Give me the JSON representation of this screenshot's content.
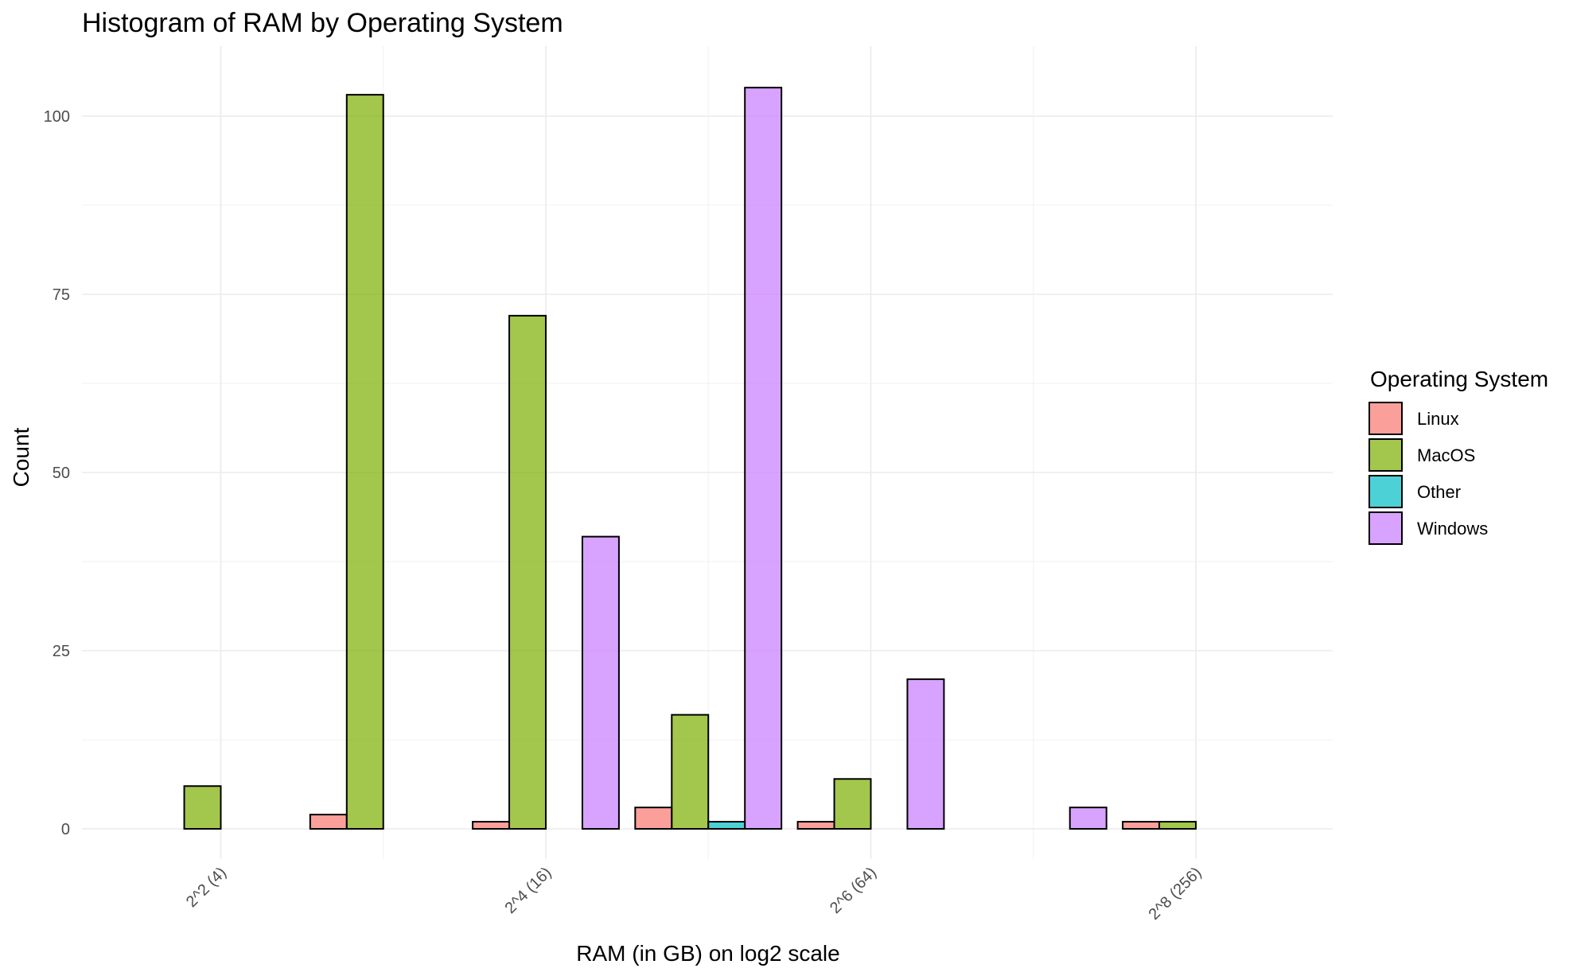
{
  "chart_data": {
    "type": "bar",
    "title": "Histogram of RAM by Operating System",
    "xlabel": "RAM (in GB) on log2 scale",
    "ylabel": "Count",
    "x_scale": "log2",
    "x_tick_labels": [
      "2^2 (4)",
      "2^4 (16)",
      "2^6 (64)",
      "2^8 (256)"
    ],
    "x_tick_values_gb": [
      4,
      16,
      64,
      256
    ],
    "ylim": [
      0,
      108
    ],
    "y_ticks": [
      0,
      25,
      50,
      75,
      100
    ],
    "grid": true,
    "legend": {
      "title": "Operating System",
      "position": "right",
      "entries": [
        "Linux",
        "MacOS",
        "Other",
        "Windows"
      ]
    },
    "bin_centers_gb": [
      4,
      8,
      16,
      32,
      64,
      128,
      256
    ],
    "series": [
      {
        "name": "Linux",
        "color": "#F8766D",
        "values": [
          0,
          2,
          1,
          3,
          1,
          0,
          1
        ]
      },
      {
        "name": "MacOS",
        "color": "#7CAE00",
        "values": [
          6,
          103,
          72,
          16,
          7,
          0,
          1
        ]
      },
      {
        "name": "Other",
        "color": "#00BFC4",
        "values": [
          0,
          0,
          0,
          1,
          0,
          0,
          0
        ]
      },
      {
        "name": "Windows",
        "color": "#C77CFF",
        "values": [
          0,
          0,
          41,
          104,
          21,
          3,
          0
        ]
      }
    ]
  }
}
